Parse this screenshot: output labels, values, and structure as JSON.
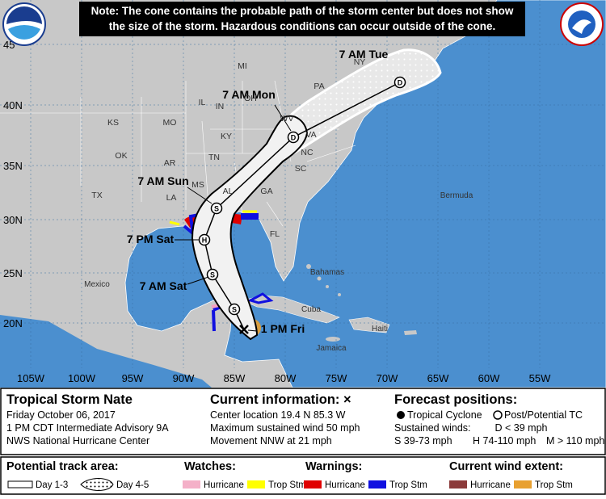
{
  "note": [
    "Note: The cone contains the probable path of the storm center but does not show",
    "the size of the storm. Hazardous conditions can occur outside of the cone."
  ],
  "map": {
    "forecast_labels": [
      "7 AM Tue",
      "7 AM Mon",
      "7 AM Sun",
      "7 PM Sat",
      "7 AM Sat",
      "1 PM Fri"
    ],
    "point_symbols": [
      "D",
      "D",
      "S",
      "H",
      "S",
      "S"
    ],
    "place_labels": [
      "KS",
      "MO",
      "OK",
      "AR",
      "TX",
      "LA",
      "MS",
      "AL",
      "GA",
      "FL",
      "SC",
      "NC",
      "TN",
      "KY",
      "IN",
      "OH",
      "WV",
      "VA",
      "PA",
      "NY",
      "MI",
      "IL",
      "Mexico",
      "Cuba",
      "Bahamas",
      "Bermuda",
      "Jamaica",
      "Haiti"
    ],
    "lat_labels": [
      "45",
      "40N",
      "35N",
      "30N",
      "25N",
      "20N"
    ],
    "lon_labels": [
      "105W",
      "100W",
      "95W",
      "90W",
      "85W",
      "80W",
      "75W",
      "70W",
      "65W",
      "60W",
      "55W"
    ]
  },
  "info": {
    "storm_name": "Tropical Storm Nate",
    "date": "Friday October 06, 2017",
    "advisory": "1 PM CDT Intermediate Advisory 9A",
    "center": "NWS National Hurricane Center"
  },
  "current": {
    "heading": "Current information: ×",
    "lines": [
      "Center location 19.4 N 85.3 W",
      "Maximum sustained wind 50 mph",
      "Movement NNW at 21 mph"
    ]
  },
  "forecast": {
    "heading": "Forecast positions:",
    "tropical": "Tropical Cyclone",
    "post": "Post/Potential TC",
    "winds_label": "Sustained winds:",
    "d": "D < 39 mph",
    "s": "S 39-73 mph",
    "h": "H 74-110 mph",
    "m": "M > 110 mph"
  },
  "legend": {
    "track": "Potential track area:",
    "day13": "Day 1-3",
    "day45": "Day 4-5",
    "watches": "Watches:",
    "watch_items": [
      "Hurricane",
      "Trop Stm"
    ],
    "warnings": "Warnings:",
    "warning_items": [
      "Hurricane",
      "Trop Stm"
    ],
    "wind": "Current wind extent:",
    "wind_items": [
      "Hurricane",
      "Trop Stm"
    ]
  }
}
